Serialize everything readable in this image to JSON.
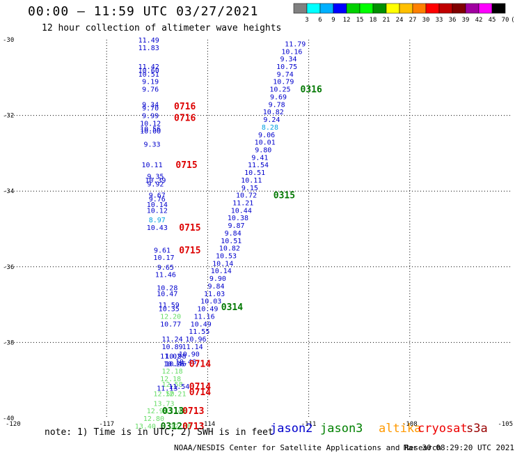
{
  "header": {
    "title": "00:00 – 11:59 UTC 03/27/2021",
    "subtitle": "12 hour collection of altimeter wave heights"
  },
  "legend_scale": {
    "labels": [
      "3",
      "6",
      "9",
      "12",
      "15",
      "18",
      "21",
      "24",
      "27",
      "30",
      "33",
      "36",
      "39",
      "42",
      "45",
      "70",
      "(ft)"
    ],
    "colors": [
      "#808080",
      "#00ffff",
      "#00b0ff",
      "#0000ff",
      "#00d000",
      "#00ff00",
      "#009000",
      "#ffff00",
      "#ffc000",
      "#ff8000",
      "#ff0000",
      "#c00000",
      "#800000",
      "#a000a0",
      "#ff00ff",
      "#000000"
    ]
  },
  "footer": {
    "note": "note: 1) Time is in UTC; 2) SWH is in feet",
    "credit": "NOAA/NESDIS Center for Satellite Applications and Research",
    "timestamp": "Mar 30 08:29:20 UTC 2021",
    "satellites": [
      {
        "name": "jason2",
        "color": "#0000cc"
      },
      {
        "name": "jason3",
        "color": "#008000"
      },
      {
        "name": "altika",
        "color": "#ff9900"
      },
      {
        "name": "cryosat",
        "color": "#ee0000"
      },
      {
        "name": "s3a",
        "color": "#990000"
      }
    ]
  },
  "chart_data": {
    "type": "scatter",
    "xlim": [
      -120,
      -105
    ],
    "ylim": [
      -40,
      -30
    ],
    "x_ticks": [
      -120,
      -117,
      -114,
      -111,
      -108,
      -105
    ],
    "y_ticks": [
      -30,
      -32,
      -34,
      -36,
      -38,
      -40
    ],
    "x_tick_labels": [
      "-120",
      "-117",
      "-114",
      "-111",
      "-108",
      "-105"
    ],
    "y_tick_labels": [
      "-30",
      "-32",
      "-34",
      "-36",
      "-38",
      "-40"
    ],
    "grid": true,
    "observations": [
      {
        "lon": -115.75,
        "lat": -30.0,
        "v": "11.49",
        "c": "#0000cc"
      },
      {
        "lon": -115.75,
        "lat": -30.2,
        "v": "11.83",
        "c": "#0000cc"
      },
      {
        "lon": -115.75,
        "lat": -30.7,
        "v": "11.42",
        "c": "#0000cc"
      },
      {
        "lon": -115.75,
        "lat": -30.8,
        "v": "10.60",
        "c": "#0000cc"
      },
      {
        "lon": -115.75,
        "lat": -30.9,
        "v": "10.51",
        "c": "#0000cc"
      },
      {
        "lon": -115.7,
        "lat": -31.1,
        "v": "9.19",
        "c": "#0000cc"
      },
      {
        "lon": -115.7,
        "lat": -31.3,
        "v": "9.76",
        "c": "#0000cc"
      },
      {
        "lon": -115.7,
        "lat": -31.7,
        "v": "9.34",
        "c": "#0000cc"
      },
      {
        "lon": -115.7,
        "lat": -31.8,
        "v": "9.70",
        "c": "#0000cc"
      },
      {
        "lon": -115.7,
        "lat": -32.0,
        "v": "9.99",
        "c": "#0000cc"
      },
      {
        "lon": -115.7,
        "lat": -32.2,
        "v": "10.12",
        "c": "#0000cc"
      },
      {
        "lon": -115.7,
        "lat": -32.35,
        "v": "10.56",
        "c": "#0000cc"
      },
      {
        "lon": -115.7,
        "lat": -32.4,
        "v": "10.00",
        "c": "#0000cc"
      },
      {
        "lon": -115.65,
        "lat": -32.75,
        "v": "9.33",
        "c": "#0000cc"
      },
      {
        "lon": -115.65,
        "lat": -33.3,
        "v": "10.11",
        "c": "#0000cc"
      },
      {
        "lon": -115.55,
        "lat": -33.6,
        "v": "9.35",
        "c": "#0000cc"
      },
      {
        "lon": -115.55,
        "lat": -33.7,
        "v": "10.39",
        "c": "#0000cc"
      },
      {
        "lon": -115.55,
        "lat": -33.8,
        "v": "9.92",
        "c": "#0000cc"
      },
      {
        "lon": -115.5,
        "lat": -34.1,
        "v": "9.67",
        "c": "#0000cc"
      },
      {
        "lon": -115.5,
        "lat": -34.2,
        "v": "9.76",
        "c": "#0000cc"
      },
      {
        "lon": -115.5,
        "lat": -34.35,
        "v": "10.14",
        "c": "#0000cc"
      },
      {
        "lon": -115.5,
        "lat": -34.5,
        "v": "10.12",
        "c": "#0000cc"
      },
      {
        "lon": -115.5,
        "lat": -34.75,
        "v": "8.97",
        "c": "#00a0e0"
      },
      {
        "lon": -115.5,
        "lat": -34.95,
        "v": "10.43",
        "c": "#0000cc"
      },
      {
        "lon": -115.35,
        "lat": -35.55,
        "v": "9.61",
        "c": "#0000cc"
      },
      {
        "lon": -115.3,
        "lat": -35.75,
        "v": "10.17",
        "c": "#0000cc"
      },
      {
        "lon": -115.25,
        "lat": -36.0,
        "v": "9.65",
        "c": "#0000cc"
      },
      {
        "lon": -115.25,
        "lat": -36.2,
        "v": "11.46",
        "c": "#0000cc"
      },
      {
        "lon": -115.2,
        "lat": -36.55,
        "v": "10.28",
        "c": "#0000cc"
      },
      {
        "lon": -115.2,
        "lat": -36.7,
        "v": "10.47",
        "c": "#0000cc"
      },
      {
        "lon": -115.15,
        "lat": -37.0,
        "v": "11.59",
        "c": "#0000cc"
      },
      {
        "lon": -115.15,
        "lat": -37.1,
        "v": "10.35",
        "c": "#0000cc"
      },
      {
        "lon": -115.1,
        "lat": -37.3,
        "v": "12.20",
        "c": "#66dd66"
      },
      {
        "lon": -115.1,
        "lat": -37.5,
        "v": "10.77",
        "c": "#0000cc"
      },
      {
        "lon": -115.05,
        "lat": -37.9,
        "v": "11.24",
        "c": "#0000cc"
      },
      {
        "lon": -115.05,
        "lat": -38.1,
        "v": "10.89",
        "c": "#0000cc"
      },
      {
        "lon": -115.1,
        "lat": -38.35,
        "v": "11.02",
        "c": "#0000cc"
      },
      {
        "lon": -114.95,
        "lat": -38.35,
        "v": "10.98",
        "c": "#0000cc"
      },
      {
        "lon": -114.95,
        "lat": -38.55,
        "v": "10.46",
        "c": "#0000cc"
      },
      {
        "lon": -115.0,
        "lat": -38.55,
        "v": "10.26",
        "c": "#0000cc"
      },
      {
        "lon": -115.05,
        "lat": -38.75,
        "v": "12.18",
        "c": "#66dd66"
      },
      {
        "lon": -115.1,
        "lat": -38.95,
        "v": "12.18",
        "c": "#66dd66"
      },
      {
        "lon": -115.05,
        "lat": -39.1,
        "v": "12.58",
        "c": "#66dd66"
      },
      {
        "lon": -115.2,
        "lat": -39.2,
        "v": "11.13",
        "c": "#0000cc"
      },
      {
        "lon": -114.85,
        "lat": -39.15,
        "v": "11.54",
        "c": "#0000cc"
      },
      {
        "lon": -115.3,
        "lat": -39.35,
        "v": "12.50",
        "c": "#66dd66"
      },
      {
        "lon": -114.95,
        "lat": -39.35,
        "v": "12.21",
        "c": "#66dd66"
      },
      {
        "lon": -115.3,
        "lat": -39.6,
        "v": "13.73",
        "c": "#66dd66"
      },
      {
        "lon": -115.5,
        "lat": -39.8,
        "v": "12.92",
        "c": "#66dd66"
      },
      {
        "lon": -114.95,
        "lat": -39.8,
        "v": "12.43",
        "c": "#66dd66"
      },
      {
        "lon": -115.6,
        "lat": -40.0,
        "v": "12.80",
        "c": "#66dd66"
      },
      {
        "lon": -115.85,
        "lat": -40.2,
        "v": "13.40",
        "c": "#66dd66"
      },
      {
        "lon": -114.8,
        "lat": -40.2,
        "v": "12.88",
        "c": "#66dd66"
      },
      {
        "lon": -111.4,
        "lat": -30.1,
        "v": "11.79",
        "c": "#0000cc"
      },
      {
        "lon": -111.5,
        "lat": -30.3,
        "v": "10.16",
        "c": "#0000cc"
      },
      {
        "lon": -111.6,
        "lat": -30.5,
        "v": "9.34",
        "c": "#0000cc"
      },
      {
        "lon": -111.65,
        "lat": -30.7,
        "v": "10.75",
        "c": "#0000cc"
      },
      {
        "lon": -111.7,
        "lat": -30.9,
        "v": "9.74",
        "c": "#0000cc"
      },
      {
        "lon": -111.75,
        "lat": -31.1,
        "v": "10.79",
        "c": "#0000cc"
      },
      {
        "lon": -111.85,
        "lat": -31.3,
        "v": "10.25",
        "c": "#0000cc"
      },
      {
        "lon": -111.9,
        "lat": -31.5,
        "v": "9.69",
        "c": "#0000cc"
      },
      {
        "lon": -111.95,
        "lat": -31.7,
        "v": "9.78",
        "c": "#0000cc"
      },
      {
        "lon": -112.05,
        "lat": -31.9,
        "v": "10.82",
        "c": "#0000cc"
      },
      {
        "lon": -112.1,
        "lat": -32.1,
        "v": "9.24",
        "c": "#0000cc"
      },
      {
        "lon": -112.15,
        "lat": -32.3,
        "v": "8.28",
        "c": "#00a0e0"
      },
      {
        "lon": -112.25,
        "lat": -32.5,
        "v": "9.06",
        "c": "#0000cc"
      },
      {
        "lon": -112.3,
        "lat": -32.7,
        "v": "10.01",
        "c": "#0000cc"
      },
      {
        "lon": -112.35,
        "lat": -32.9,
        "v": "9.80",
        "c": "#0000cc"
      },
      {
        "lon": -112.45,
        "lat": -33.1,
        "v": "9.41",
        "c": "#0000cc"
      },
      {
        "lon": -112.5,
        "lat": -33.3,
        "v": "11.54",
        "c": "#0000cc"
      },
      {
        "lon": -112.6,
        "lat": -33.5,
        "v": "10.51",
        "c": "#0000cc"
      },
      {
        "lon": -112.7,
        "lat": -33.7,
        "v": "10.11",
        "c": "#0000cc"
      },
      {
        "lon": -112.75,
        "lat": -33.9,
        "v": "9.15",
        "c": "#0000cc"
      },
      {
        "lon": -112.85,
        "lat": -34.1,
        "v": "10.72",
        "c": "#0000cc"
      },
      {
        "lon": -112.95,
        "lat": -34.3,
        "v": "11.21",
        "c": "#0000cc"
      },
      {
        "lon": -113.0,
        "lat": -34.5,
        "v": "10.44",
        "c": "#0000cc"
      },
      {
        "lon": -113.1,
        "lat": -34.7,
        "v": "10.38",
        "c": "#0000cc"
      },
      {
        "lon": -113.15,
        "lat": -34.9,
        "v": "9.87",
        "c": "#0000cc"
      },
      {
        "lon": -113.25,
        "lat": -35.1,
        "v": "9.84",
        "c": "#0000cc"
      },
      {
        "lon": -113.3,
        "lat": -35.3,
        "v": "10.51",
        "c": "#0000cc"
      },
      {
        "lon": -113.35,
        "lat": -35.5,
        "v": "10.82",
        "c": "#0000cc"
      },
      {
        "lon": -113.45,
        "lat": -35.7,
        "v": "10.53",
        "c": "#0000cc"
      },
      {
        "lon": -113.55,
        "lat": -35.9,
        "v": "10.14",
        "c": "#0000cc"
      },
      {
        "lon": -113.6,
        "lat": -36.1,
        "v": "10.14",
        "c": "#0000cc"
      },
      {
        "lon": -113.7,
        "lat": -36.3,
        "v": "9.90",
        "c": "#0000cc"
      },
      {
        "lon": -113.75,
        "lat": -36.5,
        "v": "9.84",
        "c": "#0000cc"
      },
      {
        "lon": -113.8,
        "lat": -36.7,
        "v": "11.03",
        "c": "#0000cc"
      },
      {
        "lon": -113.9,
        "lat": -36.9,
        "v": "10.03",
        "c": "#0000cc"
      },
      {
        "lon": -114.0,
        "lat": -37.1,
        "v": "10.49",
        "c": "#0000cc"
      },
      {
        "lon": -114.1,
        "lat": -37.3,
        "v": "11.16",
        "c": "#0000cc"
      },
      {
        "lon": -114.2,
        "lat": -37.5,
        "v": "10.49",
        "c": "#0000cc"
      },
      {
        "lon": -114.25,
        "lat": -37.7,
        "v": "11.55",
        "c": "#0000cc"
      },
      {
        "lon": -114.35,
        "lat": -37.9,
        "v": "10.96",
        "c": "#0000cc"
      },
      {
        "lon": -114.45,
        "lat": -38.1,
        "v": "11.14",
        "c": "#0000cc"
      },
      {
        "lon": -114.55,
        "lat": -38.3,
        "v": "10.90",
        "c": "#0000cc"
      },
      {
        "lon": -114.65,
        "lat": -38.5,
        "v": "10.46",
        "c": "#0000cc"
      }
    ],
    "pass_labels": [
      {
        "lon": -115.0,
        "lat": -31.75,
        "text": "0716",
        "color": "#dd0000"
      },
      {
        "lon": -115.0,
        "lat": -32.05,
        "text": "0716",
        "color": "#dd0000"
      },
      {
        "lon": -114.95,
        "lat": -33.3,
        "text": "0715",
        "color": "#dd0000"
      },
      {
        "lon": -114.85,
        "lat": -34.95,
        "text": "0715",
        "color": "#dd0000"
      },
      {
        "lon": -114.85,
        "lat": -35.55,
        "text": "0715",
        "color": "#dd0000"
      },
      {
        "lon": -114.55,
        "lat": -38.55,
        "text": "0714",
        "color": "#dd0000"
      },
      {
        "lon": -114.55,
        "lat": -39.15,
        "text": "0714",
        "color": "#dd0000"
      },
      {
        "lon": -114.55,
        "lat": -39.3,
        "text": "0714",
        "color": "#dd0000"
      },
      {
        "lon": -114.75,
        "lat": -39.8,
        "text": "0713",
        "color": "#dd0000"
      },
      {
        "lon": -114.75,
        "lat": -40.2,
        "text": "0713",
        "color": "#dd0000"
      },
      {
        "lon": -111.25,
        "lat": -31.3,
        "text": "0316",
        "color": "#007700"
      },
      {
        "lon": -112.05,
        "lat": -34.1,
        "text": "0315",
        "color": "#007700"
      },
      {
        "lon": -113.6,
        "lat": -37.05,
        "text": "0314",
        "color": "#007700"
      },
      {
        "lon": -115.35,
        "lat": -39.8,
        "text": "0313",
        "color": "#007700"
      },
      {
        "lon": -115.4,
        "lat": -40.2,
        "text": "0312",
        "color": "#007700"
      }
    ]
  }
}
